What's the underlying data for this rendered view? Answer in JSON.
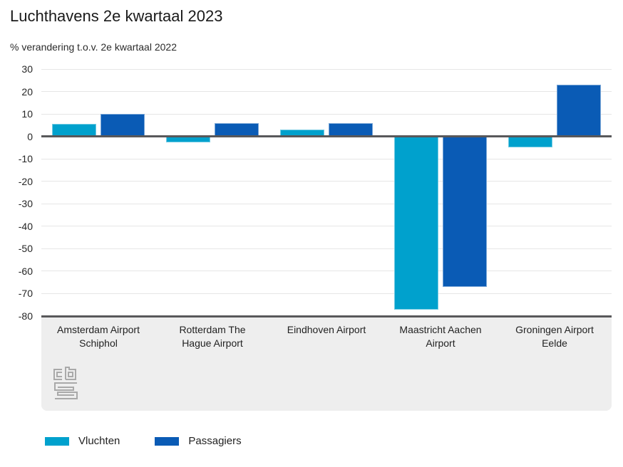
{
  "header": {
    "title": "Luchthavens 2e kwartaal 2023",
    "subtitle": "% verandering t.o.v. 2e kwartaal 2022"
  },
  "chart_data": {
    "type": "bar",
    "title": "Luchthavens 2e kwartaal 2023",
    "ylabel": "% verandering t.o.v. 2e kwartaal 2022",
    "categories": [
      "Amsterdam Airport Schiphol",
      "Rotterdam The Hague Airport",
      "Eindhoven Airport",
      "Maastricht Aachen Airport",
      "Groningen Airport Eelde"
    ],
    "categories_wrapped": [
      "Amsterdam Airport\nSchiphol",
      "Rotterdam The\nHague Airport",
      "Eindhoven Airport",
      "Maastricht Aachen\nAirport",
      "Groningen Airport\nEelde"
    ],
    "series": [
      {
        "name": "Vluchten",
        "color": "#00a1cd",
        "values": [
          5.5,
          -2.5,
          3,
          -77,
          -5
        ]
      },
      {
        "name": "Passagiers",
        "color": "#0a5bb5",
        "values": [
          10,
          6,
          6,
          -67,
          23
        ]
      }
    ],
    "ylim": [
      -80,
      30
    ],
    "yticks": [
      30,
      20,
      10,
      0,
      -10,
      -20,
      -30,
      -40,
      -50,
      -60,
      -70,
      -80
    ],
    "grid": true,
    "legend_position": "bottom"
  },
  "branding": {
    "logo": "cbs-logo"
  },
  "colors": {
    "axis": "#58585a",
    "grid": "#e6e6e6",
    "band": "#eeeeee",
    "text": "#222222",
    "vluchten": "#00a1cd",
    "passagiers": "#0a5bb5"
  }
}
